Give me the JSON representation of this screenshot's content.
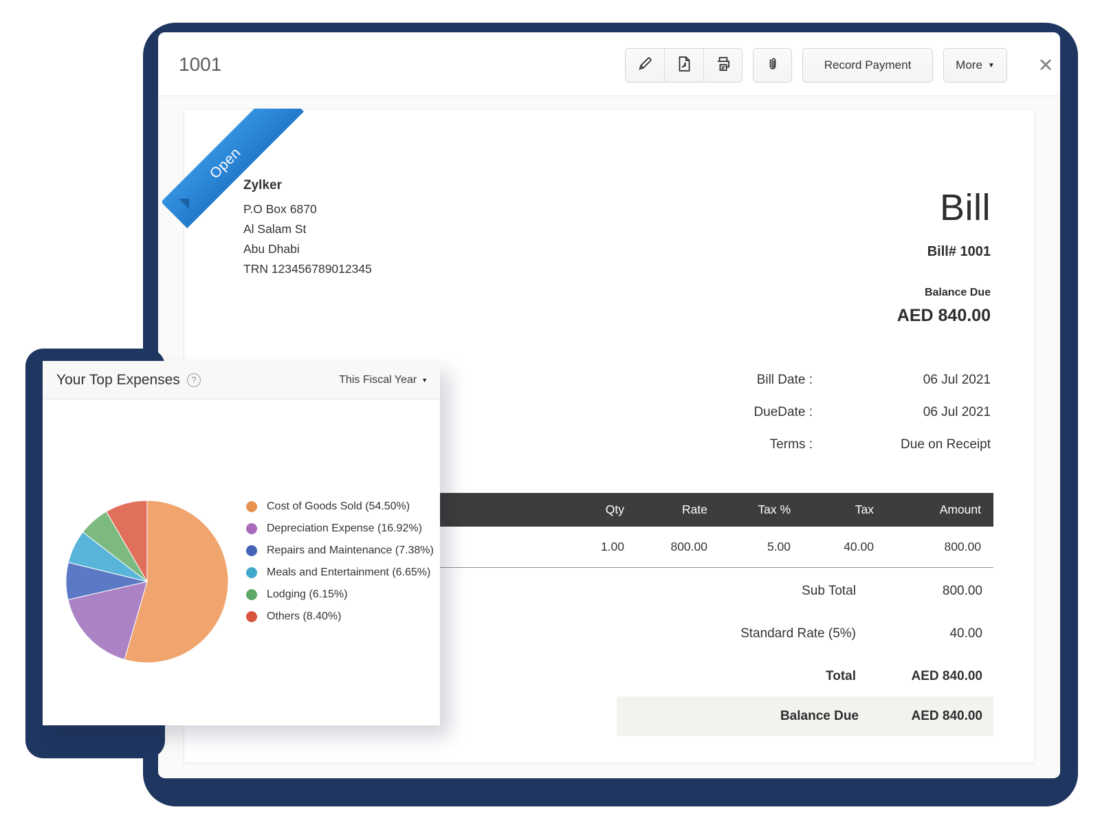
{
  "window": {
    "title": "1001"
  },
  "toolbar": {
    "record_payment": "Record Payment",
    "more": "More",
    "close_glyph": "✕",
    "chevron_glyph": "▼"
  },
  "bill": {
    "status_ribbon": "Open",
    "vendor": {
      "name": "Zylker",
      "address_lines": [
        "P.O Box 6870",
        "Al Salam St",
        "Abu Dhabi",
        "TRN 123456789012345"
      ]
    },
    "doc_title": "Bill",
    "bill_number": "Bill# 1001",
    "balance_due_label": "Balance Due",
    "balance_due_amount": "AED 840.00",
    "meta": [
      {
        "label": "Bill Date :",
        "value": "06 Jul 2021"
      },
      {
        "label": "DueDate :",
        "value": "06 Jul 2021"
      },
      {
        "label": "Terms :",
        "value": "Due on Receipt"
      }
    ],
    "table": {
      "headers": [
        "Qty",
        "Rate",
        "Tax %",
        "Tax",
        "Amount"
      ],
      "rows": [
        [
          "1.00",
          "800.00",
          "5.00",
          "40.00",
          "800.00"
        ]
      ]
    },
    "totals": [
      {
        "label": "Sub Total",
        "value": "800.00",
        "bold": false
      },
      {
        "label": "Standard Rate (5%)",
        "value": "40.00",
        "bold": false
      },
      {
        "label": "Total",
        "value": "AED 840.00",
        "bold": true
      }
    ],
    "balance_row": {
      "label": "Balance Due",
      "value": "AED 840.00"
    }
  },
  "expenses_card": {
    "title": "Your Top Expenses",
    "help_glyph": "?",
    "period_selector": "This Fiscal Year"
  },
  "chart_data": {
    "type": "pie",
    "title": "Your Top Expenses",
    "period": "This Fiscal Year",
    "labels": [
      "Cost of Goods Sold",
      "Depreciation Expense",
      "Repairs and Maintenance",
      "Meals and Entertainment",
      "Lodging",
      "Others"
    ],
    "values": [
      54.5,
      16.92,
      7.38,
      6.65,
      6.15,
      8.4
    ],
    "legend_labels": [
      "Cost of Goods Sold (54.50%)",
      "Depreciation Expense (16.92%)",
      "Repairs and Maintenance (7.38%)",
      "Meals and Entertainment (6.65%)",
      "Lodging (6.15%)",
      "Others (8.40%)"
    ],
    "legend_colors": [
      "#e8924f",
      "#a96cba",
      "#4563b7",
      "#41a9cd",
      "#5da767",
      "#d8543c"
    ],
    "pie_colors": [
      "#f0a46e",
      "#ab83c5",
      "#5b79c4",
      "#58b4d8",
      "#7dba80",
      "#e0705c"
    ],
    "legend_position": "right",
    "start_angle_deg": 0,
    "direction": "clockwise"
  },
  "colors": {
    "frame_navy": "#1f3660",
    "ribbon_blue": "#2c86d6",
    "table_header_bg": "#3d3d3b",
    "balance_band_bg": "#f3f2ef"
  }
}
